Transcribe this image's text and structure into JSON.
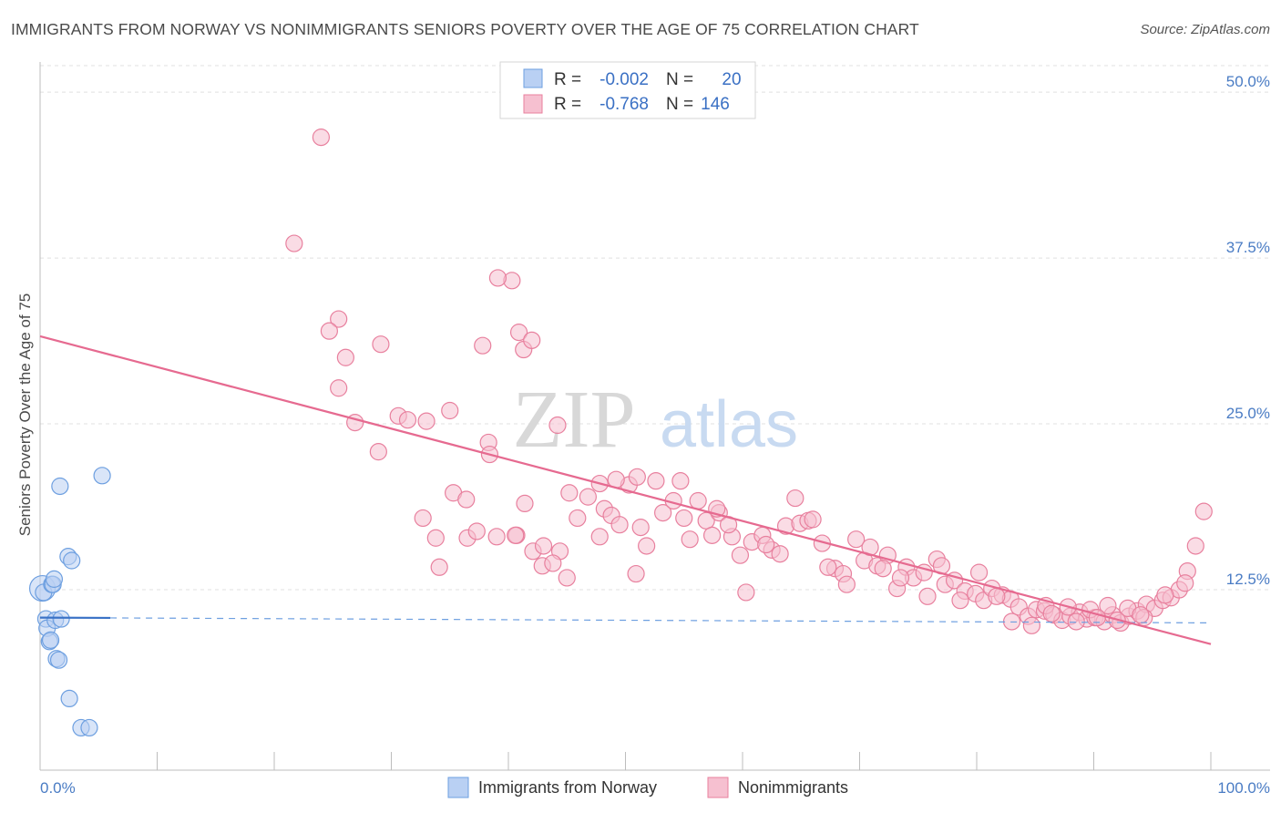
{
  "chart_data": {
    "type": "scatter",
    "title": "IMMIGRANTS FROM NORWAY VS NONIMMIGRANTS SENIORS POVERTY OVER THE AGE OF 75 CORRELATION CHART",
    "source": "Source: ZipAtlas.com",
    "ylabel": "Seniors Poverty Over the Age of 75",
    "xlim": [
      0,
      100
    ],
    "ylim": [
      0,
      52
    ],
    "x_tick_labels": {
      "left": "0.0%",
      "right": "100.0%"
    },
    "y_ticks": [
      {
        "value": 12.5,
        "label": "12.5%"
      },
      {
        "value": 25.0,
        "label": "25.0%"
      },
      {
        "value": 37.5,
        "label": "37.5%"
      },
      {
        "value": 50.0,
        "label": "50.0%"
      }
    ],
    "watermark": {
      "zip": "ZIP",
      "atlas": "atlas"
    },
    "legend": {
      "rows": [
        {
          "r_label": "R =",
          "r_value": "-0.002",
          "n_label": "N =",
          "n_value": "20"
        },
        {
          "r_label": "R =",
          "r_value": "-0.768",
          "n_label": "N =",
          "n_value": "146"
        }
      ]
    },
    "series": [
      {
        "name": "Immigrants from Norway",
        "color": "#6d9fe0",
        "fill": "#b9d0f3",
        "trend": {
          "x0": 0,
          "y0": 10.4,
          "x1": 100,
          "y1": 10.0,
          "solid_until": 6
        },
        "points": [
          [
            0.2,
            12.6
          ],
          [
            0.3,
            12.3
          ],
          [
            0.5,
            10.3
          ],
          [
            0.6,
            9.6
          ],
          [
            0.8,
            8.6
          ],
          [
            0.9,
            8.7
          ],
          [
            1.0,
            12.9
          ],
          [
            1.1,
            12.9
          ],
          [
            1.2,
            13.3
          ],
          [
            1.3,
            10.2
          ],
          [
            1.4,
            7.3
          ],
          [
            1.6,
            7.2
          ],
          [
            1.7,
            20.3
          ],
          [
            1.8,
            10.3
          ],
          [
            2.4,
            15.0
          ],
          [
            2.7,
            14.7
          ],
          [
            2.5,
            4.3
          ],
          [
            3.5,
            2.1
          ],
          [
            4.2,
            2.1
          ],
          [
            5.3,
            21.1
          ]
        ]
      },
      {
        "name": "Nonimmigrants",
        "color": "#e8809e",
        "fill": "#f6c0d0",
        "trend": {
          "x0": 0,
          "y0": 31.6,
          "x1": 100,
          "y1": 8.4
        },
        "points": [
          [
            24.0,
            46.6
          ],
          [
            21.7,
            38.6
          ],
          [
            25.5,
            32.9
          ],
          [
            24.7,
            32.0
          ],
          [
            26.1,
            30.0
          ],
          [
            29.1,
            31.0
          ],
          [
            26.9,
            25.1
          ],
          [
            25.5,
            27.7
          ],
          [
            28.9,
            22.9
          ],
          [
            30.6,
            25.6
          ],
          [
            31.4,
            25.3
          ],
          [
            33.0,
            25.2
          ],
          [
            35.0,
            26.0
          ],
          [
            36.5,
            16.4
          ],
          [
            37.8,
            30.9
          ],
          [
            38.3,
            23.6
          ],
          [
            40.3,
            35.8
          ],
          [
            39.0,
            16.5
          ],
          [
            37.3,
            16.9
          ],
          [
            38.4,
            22.7
          ],
          [
            39.1,
            36.0
          ],
          [
            40.9,
            31.9
          ],
          [
            41.3,
            30.6
          ],
          [
            42.0,
            31.3
          ],
          [
            40.7,
            16.6
          ],
          [
            42.1,
            15.4
          ],
          [
            43.0,
            15.8
          ],
          [
            41.4,
            19.0
          ],
          [
            32.7,
            17.9
          ],
          [
            33.8,
            16.4
          ],
          [
            34.1,
            14.2
          ],
          [
            35.3,
            19.8
          ],
          [
            36.4,
            19.3
          ],
          [
            42.9,
            14.3
          ],
          [
            45.2,
            19.8
          ],
          [
            45.9,
            17.9
          ],
          [
            45.0,
            13.4
          ],
          [
            44.2,
            24.9
          ],
          [
            47.8,
            20.5
          ],
          [
            48.2,
            18.6
          ],
          [
            48.8,
            18.1
          ],
          [
            49.5,
            17.4
          ],
          [
            50.3,
            20.4
          ],
          [
            51.3,
            17.2
          ],
          [
            47.8,
            16.5
          ],
          [
            51.8,
            15.8
          ],
          [
            50.9,
            13.7
          ],
          [
            53.2,
            18.3
          ],
          [
            54.7,
            20.7
          ],
          [
            55.0,
            17.9
          ],
          [
            56.2,
            19.2
          ],
          [
            56.9,
            17.7
          ],
          [
            57.4,
            16.6
          ],
          [
            58.0,
            18.3
          ],
          [
            59.1,
            16.5
          ],
          [
            59.8,
            15.1
          ],
          [
            60.8,
            16.1
          ],
          [
            61.7,
            16.6
          ],
          [
            62.5,
            15.5
          ],
          [
            63.7,
            17.3
          ],
          [
            64.5,
            19.4
          ],
          [
            64.9,
            17.5
          ],
          [
            65.6,
            17.7
          ],
          [
            66.8,
            16.0
          ],
          [
            67.9,
            14.1
          ],
          [
            68.6,
            13.7
          ],
          [
            69.7,
            16.3
          ],
          [
            70.4,
            14.7
          ],
          [
            71.5,
            14.3
          ],
          [
            72.4,
            15.1
          ],
          [
            73.2,
            12.6
          ],
          [
            74.0,
            14.2
          ],
          [
            74.6,
            13.4
          ],
          [
            75.5,
            13.8
          ],
          [
            76.6,
            14.8
          ],
          [
            77.3,
            12.9
          ],
          [
            78.1,
            13.2
          ],
          [
            79.0,
            12.4
          ],
          [
            79.9,
            12.2
          ],
          [
            80.6,
            11.7
          ],
          [
            81.3,
            12.6
          ],
          [
            82.2,
            12.1
          ],
          [
            82.9,
            11.8
          ],
          [
            83.6,
            11.2
          ],
          [
            84.4,
            10.5
          ],
          [
            85.1,
            11.0
          ],
          [
            85.8,
            10.9
          ],
          [
            86.6,
            10.6
          ],
          [
            87.3,
            10.2
          ],
          [
            88.0,
            10.5
          ],
          [
            88.8,
            10.8
          ],
          [
            89.4,
            10.3
          ],
          [
            90.1,
            10.4
          ],
          [
            90.9,
            10.1
          ],
          [
            91.6,
            10.6
          ],
          [
            92.3,
            10.0
          ],
          [
            93.0,
            10.5
          ],
          [
            93.7,
            10.9
          ],
          [
            94.5,
            11.4
          ],
          [
            95.2,
            11.1
          ],
          [
            95.9,
            11.7
          ],
          [
            96.6,
            11.9
          ],
          [
            97.3,
            12.5
          ],
          [
            98.0,
            13.9
          ],
          [
            98.7,
            15.8
          ],
          [
            99.4,
            18.4
          ],
          [
            85.9,
            11.3
          ],
          [
            87.8,
            11.2
          ],
          [
            89.7,
            11.0
          ],
          [
            91.2,
            11.3
          ],
          [
            92.9,
            11.1
          ],
          [
            94.3,
            10.4
          ],
          [
            96.1,
            12.1
          ],
          [
            97.8,
            13.0
          ],
          [
            83.0,
            10.1
          ],
          [
            84.7,
            9.8
          ],
          [
            86.4,
            10.7
          ],
          [
            88.5,
            10.1
          ],
          [
            90.3,
            10.4
          ],
          [
            92.0,
            10.2
          ],
          [
            94.0,
            10.6
          ],
          [
            81.7,
            12.0
          ],
          [
            80.2,
            13.8
          ],
          [
            78.6,
            11.7
          ],
          [
            77.0,
            14.3
          ],
          [
            75.8,
            12.0
          ],
          [
            73.5,
            13.4
          ],
          [
            72.0,
            14.1
          ],
          [
            70.9,
            15.7
          ],
          [
            68.9,
            12.9
          ],
          [
            67.3,
            14.2
          ],
          [
            66.0,
            17.8
          ],
          [
            63.2,
            15.2
          ],
          [
            62.0,
            15.9
          ],
          [
            60.3,
            12.3
          ],
          [
            58.8,
            17.4
          ],
          [
            57.8,
            18.6
          ],
          [
            55.5,
            16.3
          ],
          [
            54.1,
            19.2
          ],
          [
            52.6,
            20.7
          ],
          [
            51.0,
            21.0
          ],
          [
            49.2,
            20.8
          ],
          [
            46.8,
            19.5
          ],
          [
            44.4,
            15.4
          ],
          [
            43.8,
            14.5
          ],
          [
            40.6,
            16.6
          ]
        ]
      }
    ],
    "bottom_legend": [
      "Immigrants from Norway",
      "Nonimmigrants"
    ]
  }
}
